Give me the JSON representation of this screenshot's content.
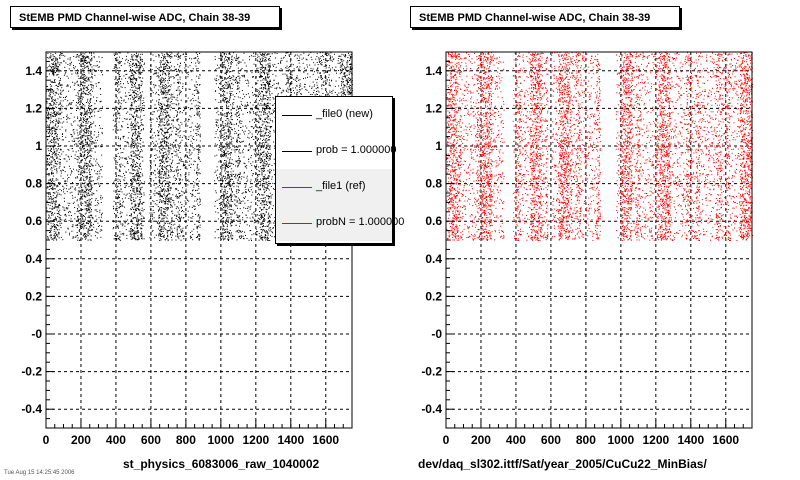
{
  "footnote": "Tue Aug 15 14:25:45 2006",
  "legend": {
    "entries": [
      {
        "label": "_file0 (new)",
        "color": "#000000"
      },
      {
        "label": "prob = 1.000000",
        "color": "#000000"
      },
      {
        "label": "_file1 (ref)",
        "color": "#ff0000"
      },
      {
        "label": "probN = 1.000000",
        "color": "#ff0000"
      }
    ]
  },
  "chart_data": [
    {
      "type": "scatter",
      "title": "StEMB PMD Channel-wise ADC, Chain 38-39",
      "xlabel": "st_physics_6083006_raw_1040002",
      "ylabel": "",
      "xlim": [
        0,
        1750
      ],
      "ylim": [
        -0.5,
        1.5
      ],
      "xticks": [
        "0",
        "200",
        "400",
        "600",
        "800",
        "1000",
        "1200",
        "1400",
        "1600"
      ],
      "yticks": [
        "-0.4",
        "-0.2",
        "-0",
        "0.2",
        "0.4",
        "0.6",
        "0.8",
        "1",
        "1.2",
        "1.4"
      ],
      "grid": true,
      "color": "#000000",
      "point_band_y": [
        0.5,
        1.5
      ],
      "empty_x_ranges": [
        [
          320,
          380
        ],
        [
          560,
          590
        ],
        [
          880,
          960
        ]
      ],
      "dense_x_ranges": [
        [
          20,
          60
        ],
        [
          200,
          260
        ],
        [
          480,
          540
        ],
        [
          640,
          700
        ],
        [
          1000,
          1060
        ],
        [
          1220,
          1280
        ],
        [
          1680,
          1750
        ]
      ]
    },
    {
      "type": "scatter",
      "title": "StEMB PMD Channel-wise ADC, Chain 38-39",
      "xlabel": "dev/daq_sl302.ittf/Sat/year_2005/CuCu22_MinBias/",
      "ylabel": "",
      "xlim": [
        0,
        1750
      ],
      "ylim": [
        -0.5,
        1.5
      ],
      "xticks": [
        "0",
        "200",
        "400",
        "600",
        "800",
        "1000",
        "1200",
        "1400",
        "1600"
      ],
      "yticks": [
        "-0.4",
        "-0.2",
        "-0",
        "0.2",
        "0.4",
        "0.6",
        "0.8",
        "1",
        "1.2",
        "1.4"
      ],
      "grid": true,
      "color": "#ff0000",
      "point_band_y": [
        0.5,
        1.5
      ],
      "empty_x_ranges": [
        [
          330,
          380
        ],
        [
          580,
          600
        ],
        [
          880,
          970
        ]
      ],
      "dense_x_ranges": [
        [
          20,
          60
        ],
        [
          200,
          260
        ],
        [
          480,
          540
        ],
        [
          640,
          700
        ],
        [
          1000,
          1060
        ],
        [
          1220,
          1280
        ],
        [
          1680,
          1750
        ]
      ]
    }
  ]
}
